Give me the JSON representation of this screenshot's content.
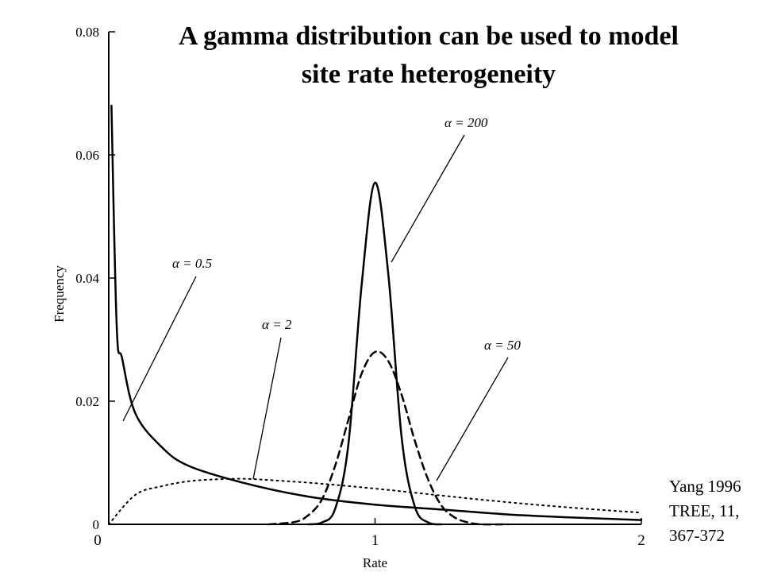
{
  "title": {
    "line1": "A gamma distribution can be used to model",
    "line2": "site rate heterogeneity"
  },
  "citation": {
    "line1": "Yang 1996",
    "line2": "TREE, 11,",
    "line3": "367-372"
  },
  "chart_data": {
    "type": "line",
    "xlabel": "Rate",
    "ylabel": "Frequency",
    "xlim": [
      0,
      2
    ],
    "ylim": [
      0,
      0.08
    ],
    "x_ticks": [
      "0",
      "1",
      "2"
    ],
    "y_ticks": [
      "0",
      "0.02",
      "0.04",
      "0.06",
      "0.08"
    ],
    "grid": false,
    "series": [
      {
        "name": "α = 0.5",
        "style": "solid",
        "x": [
          0.01,
          0.03,
          0.05,
          0.1,
          0.2,
          0.3,
          0.5,
          0.75,
          1.0,
          1.25,
          1.5,
          1.75,
          2.0
        ],
        "y": [
          0.068,
          0.032,
          0.027,
          0.018,
          0.0125,
          0.0095,
          0.0068,
          0.0045,
          0.0032,
          0.0024,
          0.0016,
          0.0011,
          0.0007
        ]
      },
      {
        "name": "α = 2",
        "style": "dotted",
        "x": [
          0.0,
          0.1,
          0.2,
          0.3,
          0.4,
          0.5,
          0.6,
          0.8,
          1.0,
          1.2,
          1.4,
          1.6,
          1.8,
          2.0
        ],
        "y": [
          0.0,
          0.0048,
          0.0062,
          0.007,
          0.0073,
          0.0074,
          0.0072,
          0.0066,
          0.0058,
          0.0049,
          0.004,
          0.0032,
          0.0025,
          0.0019
        ]
      },
      {
        "name": "α = 50",
        "style": "dashed",
        "x": [
          0.6,
          0.7,
          0.75,
          0.8,
          0.85,
          0.9,
          0.95,
          1.0,
          1.05,
          1.1,
          1.15,
          1.2,
          1.25,
          1.3,
          1.35,
          1.4,
          1.5
        ],
        "y": [
          0.0,
          0.0004,
          0.0015,
          0.004,
          0.0095,
          0.017,
          0.0245,
          0.028,
          0.0265,
          0.021,
          0.0135,
          0.0072,
          0.003,
          0.0011,
          0.0003,
          0.0,
          0.0
        ]
      },
      {
        "name": "α = 200",
        "style": "solid",
        "x": [
          0.75,
          0.8,
          0.85,
          0.9,
          0.95,
          1.0,
          1.05,
          1.1,
          1.15,
          1.2,
          1.25
        ],
        "y": [
          0.0,
          0.0003,
          0.0025,
          0.013,
          0.039,
          0.0555,
          0.0405,
          0.014,
          0.0028,
          0.0003,
          0.0
        ]
      }
    ],
    "annotations": [
      "α = 200",
      "α = 0.5",
      "α = 2",
      "α = 50"
    ]
  }
}
